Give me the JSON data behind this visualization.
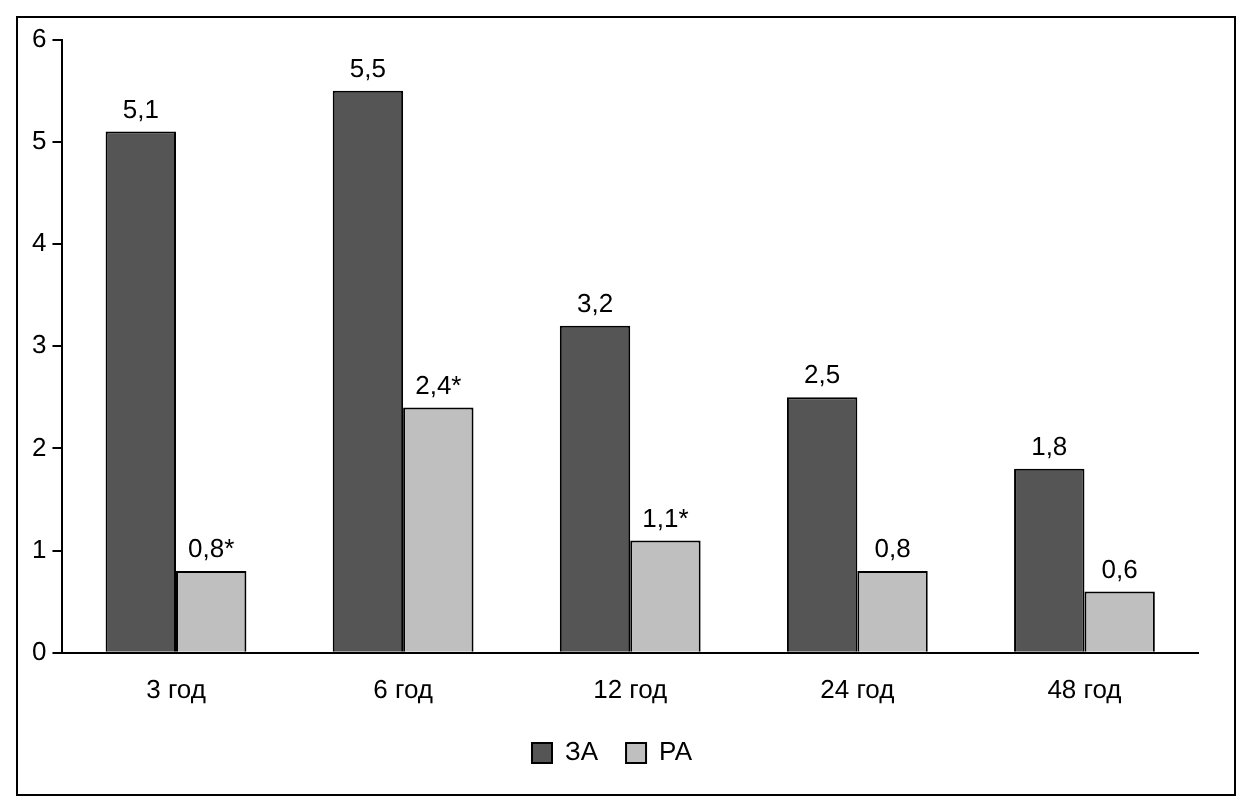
{
  "chart_data": {
    "type": "bar",
    "categories": [
      "3 год",
      "6 год",
      "12 год",
      "24 год",
      "48 год"
    ],
    "series": [
      {
        "name": "ЗА",
        "color": "#555555",
        "values": [
          5.1,
          5.5,
          3.2,
          2.5,
          1.8
        ],
        "value_labels": [
          "5,1",
          "5,5",
          "3,2",
          "2,5",
          "1,8"
        ]
      },
      {
        "name": "РА",
        "color": "#bfbfbf",
        "values": [
          0.8,
          2.4,
          1.1,
          0.8,
          0.6
        ],
        "value_labels": [
          "0,8*",
          "2,4*",
          "1,1*",
          "0,8",
          "0,6"
        ]
      }
    ],
    "ylim": [
      0,
      6
    ],
    "yticks": [
      0,
      1,
      2,
      3,
      4,
      5,
      6
    ],
    "grid": false,
    "legend": "bottom"
  }
}
